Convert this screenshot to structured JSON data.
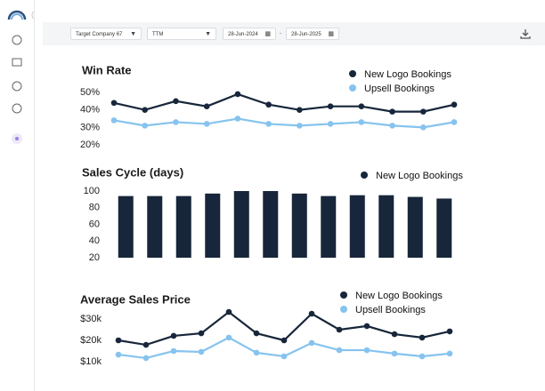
{
  "toolbar": {
    "company": "Target Company 67",
    "period": "TTM",
    "start": "28-Jun-2024",
    "separator": "-",
    "end": "28-Jun-2025"
  },
  "chart_data": [
    {
      "type": "line",
      "title": "Win Rate",
      "categories": [
        null,
        null,
        null,
        null,
        null,
        null,
        null,
        null,
        null,
        null,
        null,
        null
      ],
      "series": [
        {
          "name": "New Logo Bookings",
          "color": "#17263a",
          "values": [
            44,
            40,
            45,
            42,
            49,
            43,
            40,
            42,
            42,
            39,
            39,
            43
          ]
        },
        {
          "name": "Upsell Bookings",
          "color": "#86c3ee",
          "values": [
            34,
            31,
            33,
            32,
            35,
            32,
            31,
            32,
            33,
            31,
            30,
            33
          ]
        }
      ],
      "ylim": [
        18,
        52
      ],
      "yticks": [
        {
          "value": 20,
          "label": "20%"
        },
        {
          "value": 30,
          "label": "30%"
        },
        {
          "value": 40,
          "label": "40%"
        },
        {
          "value": 50,
          "label": "50%"
        }
      ],
      "grid": false,
      "legend": "top-right"
    },
    {
      "type": "bar",
      "title": "Sales Cycle (days)",
      "categories": [
        null,
        null,
        null,
        null,
        null,
        null,
        null,
        null,
        null,
        null,
        null,
        null
      ],
      "series": [
        {
          "name": "New Logo Bookings",
          "color": "#17263a",
          "values": [
            94,
            94,
            94,
            97,
            100,
            100,
            97,
            94,
            95,
            95,
            93,
            91
          ]
        }
      ],
      "ylim": [
        20,
        100
      ],
      "yticks": [
        20,
        40,
        60,
        80,
        100
      ],
      "grid": false,
      "legend": "top-right"
    },
    {
      "type": "line",
      "title": "Average Sales Price",
      "categories": [
        null,
        null,
        null,
        null,
        null,
        null,
        null,
        null,
        null,
        null,
        null,
        null,
        null
      ],
      "series": [
        {
          "name": "New Logo Bookings",
          "color": "#17263a",
          "values": [
            20000,
            17900,
            22100,
            23300,
            33300,
            23300,
            20000,
            32500,
            25000,
            26700,
            22900,
            21300,
            24200
          ]
        },
        {
          "name": "Upsell Bookings",
          "color": "#86c3ee",
          "values": [
            13300,
            11700,
            15000,
            14600,
            21300,
            14200,
            12500,
            18800,
            15400,
            15400,
            13800,
            12500,
            13800
          ]
        }
      ],
      "ylim": [
        6000,
        36000
      ],
      "yticks": [
        {
          "value": 10000,
          "label": "$10k"
        },
        {
          "value": 20000,
          "label": "$20k"
        },
        {
          "value": 30000,
          "label": "$30k"
        }
      ],
      "grid": false,
      "legend": "top-right"
    }
  ]
}
